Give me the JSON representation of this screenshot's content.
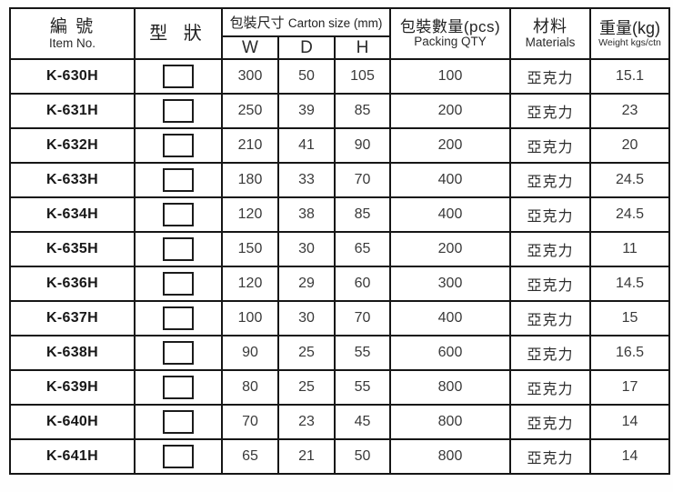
{
  "table": {
    "header": {
      "item_no": {
        "zh": "編 號",
        "en": "Item No."
      },
      "shape": {
        "zh": "型 狀"
      },
      "carton": {
        "zh": "包裝尺寸",
        "en": "Carton size (mm)",
        "sub": [
          "W",
          "D",
          "H"
        ]
      },
      "qty": {
        "zh": "包裝數量(pcs)",
        "en": "Packing QTY"
      },
      "materials": {
        "zh": "材料",
        "en": "Materials"
      },
      "weight": {
        "zh": "重量(kg)",
        "en": "Weight kgs/ctn"
      }
    },
    "rows": [
      {
        "item": "K-630H",
        "w": "300",
        "d": "50",
        "h": "105",
        "qty": "100",
        "material": "亞克力",
        "weight": "15.1"
      },
      {
        "item": "K-631H",
        "w": "250",
        "d": "39",
        "h": "85",
        "qty": "200",
        "material": "亞克力",
        "weight": "23"
      },
      {
        "item": "K-632H",
        "w": "210",
        "d": "41",
        "h": "90",
        "qty": "200",
        "material": "亞克力",
        "weight": "20"
      },
      {
        "item": "K-633H",
        "w": "180",
        "d": "33",
        "h": "70",
        "qty": "400",
        "material": "亞克力",
        "weight": "24.5"
      },
      {
        "item": "K-634H",
        "w": "120",
        "d": "38",
        "h": "85",
        "qty": "400",
        "material": "亞克力",
        "weight": "24.5"
      },
      {
        "item": "K-635H",
        "w": "150",
        "d": "30",
        "h": "65",
        "qty": "200",
        "material": "亞克力",
        "weight": "11"
      },
      {
        "item": "K-636H",
        "w": "120",
        "d": "29",
        "h": "60",
        "qty": "300",
        "material": "亞克力",
        "weight": "14.5"
      },
      {
        "item": "K-637H",
        "w": "100",
        "d": "30",
        "h": "70",
        "qty": "400",
        "material": "亞克力",
        "weight": "15"
      },
      {
        "item": "K-638H",
        "w": "90",
        "d": "25",
        "h": "55",
        "qty": "600",
        "material": "亞克力",
        "weight": "16.5"
      },
      {
        "item": "K-639H",
        "w": "80",
        "d": "25",
        "h": "55",
        "qty": "800",
        "material": "亞克力",
        "weight": "17"
      },
      {
        "item": "K-640H",
        "w": "70",
        "d": "23",
        "h": "45",
        "qty": "800",
        "material": "亞克力",
        "weight": "14"
      },
      {
        "item": "K-641H",
        "w": "65",
        "d": "21",
        "h": "50",
        "qty": "800",
        "material": "亞克力",
        "weight": "14"
      }
    ]
  },
  "colors": {
    "border": "#161616",
    "item_text": "#181818",
    "number_text": "#3a3a3a",
    "background": "#ffffff"
  }
}
